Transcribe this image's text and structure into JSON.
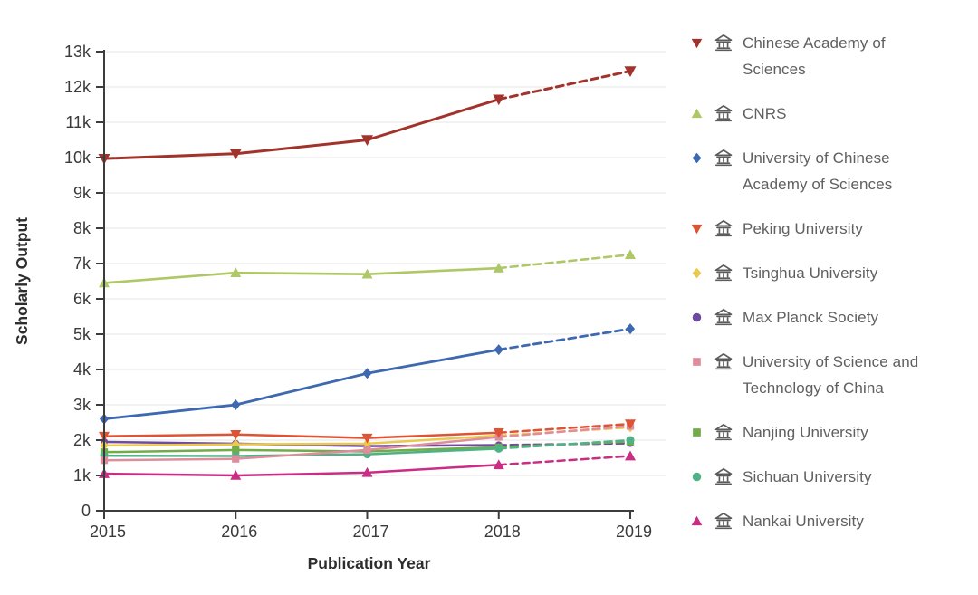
{
  "chart_data": {
    "type": "line",
    "title": "",
    "xlabel": "Publication Year",
    "ylabel": "Scholarly Output",
    "x": [
      2015,
      2016,
      2017,
      2018,
      2019
    ],
    "x_tick_labels": [
      "2015",
      "2016",
      "2017",
      "2018",
      "2019"
    ],
    "y_tick_labels": [
      "0",
      "1k",
      "2k",
      "3k",
      "4k",
      "5k",
      "6k",
      "7k",
      "8k",
      "9k",
      "10k",
      "11k",
      "12k",
      "13k"
    ],
    "ylim": [
      0,
      13000
    ],
    "grid": true,
    "legend_position": "right",
    "dashed_segment_from_x": 2018,
    "draw_order": [
      5,
      4,
      7,
      8,
      6,
      3,
      9,
      1,
      0,
      2
    ],
    "series": [
      {
        "name": "Chinese Academy of Sciences",
        "slug": "chinese-academy-of-sciences",
        "color": "#a2332c",
        "marker": "triangle-down",
        "line_width": 3,
        "marker_size": 6.5,
        "values": [
          9970,
          10110,
          10500,
          11650,
          12450
        ]
      },
      {
        "name": "CNRS",
        "slug": "cnrs",
        "color": "#aec868",
        "marker": "triangle-up",
        "line_width": 2.6,
        "marker_size": 6,
        "values": [
          6450,
          6740,
          6700,
          6870,
          7250
        ]
      },
      {
        "name": "University of Chinese Academy of Sciences",
        "slug": "university-of-chinese-academy-of-sciences",
        "color": "#3e68af",
        "marker": "diamond",
        "line_width": 2.8,
        "marker_size": 6,
        "values": [
          2600,
          3000,
          3890,
          4560,
          5150
        ]
      },
      {
        "name": "Peking University",
        "slug": "peking-university",
        "color": "#de5333",
        "marker": "triangle-down",
        "line_width": 2.5,
        "marker_size": 6,
        "values": [
          2110,
          2160,
          2060,
          2210,
          2460
        ]
      },
      {
        "name": "Tsinghua University",
        "slug": "tsinghua-university",
        "color": "#eac94d",
        "marker": "diamond",
        "line_width": 2.5,
        "marker_size": 5.5,
        "values": [
          1850,
          1880,
          1900,
          2130,
          2360
        ]
      },
      {
        "name": "Max Planck Society",
        "slug": "max-planck-society",
        "color": "#6e4b9e",
        "marker": "circle",
        "line_width": 2.5,
        "marker_size": 5,
        "values": [
          1950,
          1900,
          1830,
          1860,
          1910
        ]
      },
      {
        "name": "University of Science and Technology of China",
        "slug": "university-of-science-and-technology-of-china",
        "color": "#df8d9c",
        "marker": "square",
        "line_width": 2.5,
        "marker_size": 5.5,
        "values": [
          1430,
          1470,
          1720,
          2090,
          2400
        ]
      },
      {
        "name": "Nanjing University",
        "slug": "nanjing-university",
        "color": "#71ac49",
        "marker": "square",
        "line_width": 2.5,
        "marker_size": 5.5,
        "values": [
          1660,
          1720,
          1680,
          1800,
          1960
        ]
      },
      {
        "name": "Sichuan University",
        "slug": "sichuan-university",
        "color": "#4fb286",
        "marker": "circle",
        "line_width": 2.5,
        "marker_size": 5.5,
        "values": [
          1560,
          1550,
          1600,
          1760,
          2000
        ]
      },
      {
        "name": "Nankai University",
        "slug": "nankai-university",
        "color": "#c92e84",
        "marker": "triangle-up",
        "line_width": 2.5,
        "marker_size": 6,
        "values": [
          1050,
          1000,
          1080,
          1300,
          1550
        ]
      }
    ]
  },
  "legend": {
    "institution_icon": "institution-building-icon"
  },
  "style_colors": {
    "axis": "#3c3c3c",
    "tick_text": "#3a3a3a",
    "grid": "#e9e9e9",
    "legend_text": "#606060",
    "legend_icon": "#5b5b5b"
  }
}
